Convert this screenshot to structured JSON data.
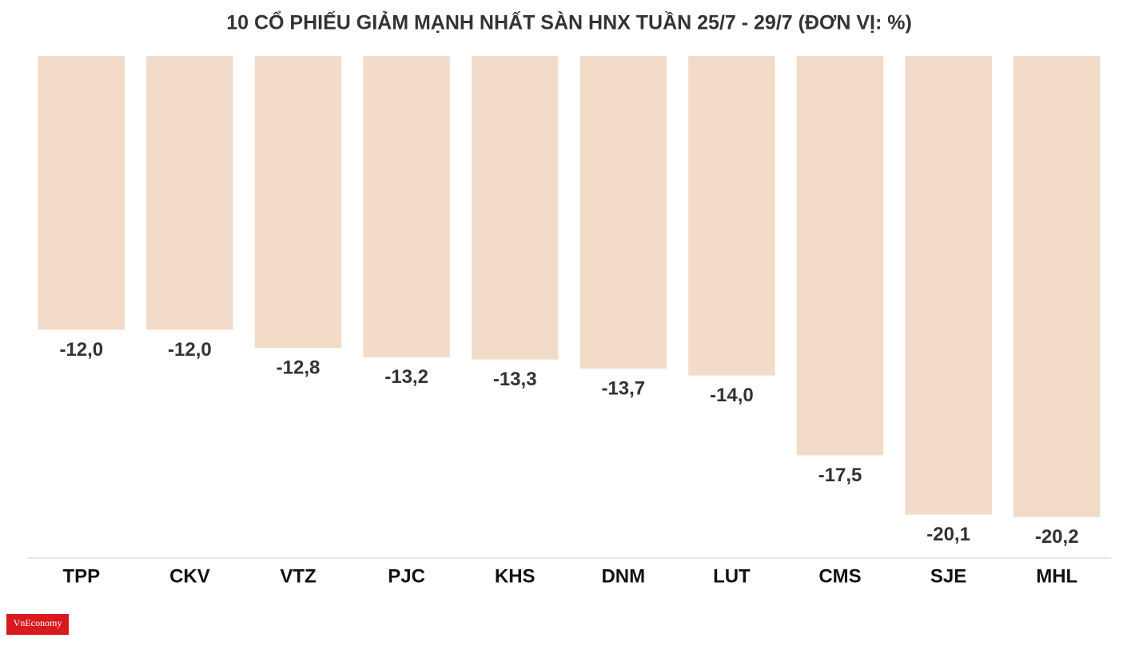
{
  "chart_data": {
    "type": "bar",
    "title": "10 CỔ PHIẾU GIẢM MẠNH NHẤT SÀN HNX TUẦN 25/7 - 29/7 (ĐƠN VỊ: %)",
    "categories": [
      "TPP",
      "CKV",
      "VTZ",
      "PJC",
      "KHS",
      "DNM",
      "LUT",
      "CMS",
      "SJE",
      "MHL"
    ],
    "values": [
      -12.0,
      -12.0,
      -12.8,
      -13.2,
      -13.3,
      -13.7,
      -14.0,
      -17.5,
      -20.1,
      -20.2
    ],
    "value_labels": [
      "-12,0",
      "-12,0",
      "-12,8",
      "-13,2",
      "-13,3",
      "-13,7",
      "-14,0",
      "-17,5",
      "-20,1",
      "-20,2"
    ],
    "color": "#f2dbc8",
    "ylim": [
      -22,
      0
    ],
    "grid": false
  },
  "logo": "VnEconomy"
}
